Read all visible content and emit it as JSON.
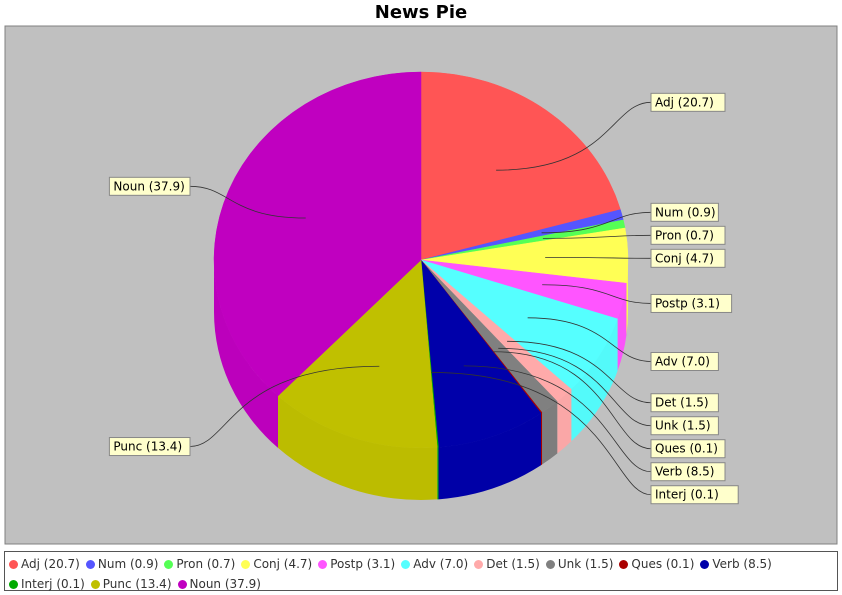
{
  "chart_data": {
    "type": "pie",
    "title": "News Pie",
    "slices": [
      {
        "label": "Adj",
        "value": 20.7,
        "color": "#ff5555"
      },
      {
        "label": "Num",
        "value": 0.9,
        "color": "#5555ff"
      },
      {
        "label": "Pron",
        "value": 0.7,
        "color": "#55ff55"
      },
      {
        "label": "Conj",
        "value": 4.7,
        "color": "#ffff55"
      },
      {
        "label": "Postp",
        "value": 3.1,
        "color": "#ff55ff"
      },
      {
        "label": "Adv",
        "value": 7.0,
        "color": "#55ffff"
      },
      {
        "label": "Det",
        "value": 1.5,
        "color": "#ffaaaa"
      },
      {
        "label": "Unk",
        "value": 1.5,
        "color": "#808080"
      },
      {
        "label": "Ques",
        "value": 0.1,
        "color": "#aa0000"
      },
      {
        "label": "Verb",
        "value": 8.5,
        "color": "#0000aa"
      },
      {
        "label": "Interj",
        "value": 0.1,
        "color": "#00aa00"
      },
      {
        "label": "Punc",
        "value": 13.4,
        "color": "#c0c000"
      },
      {
        "label": "Noun",
        "value": 37.9,
        "color": "#c000c0"
      }
    ],
    "plot_background": "#c0c0c0",
    "label_background": "#ffffcc",
    "legend_position": "bottom"
  }
}
